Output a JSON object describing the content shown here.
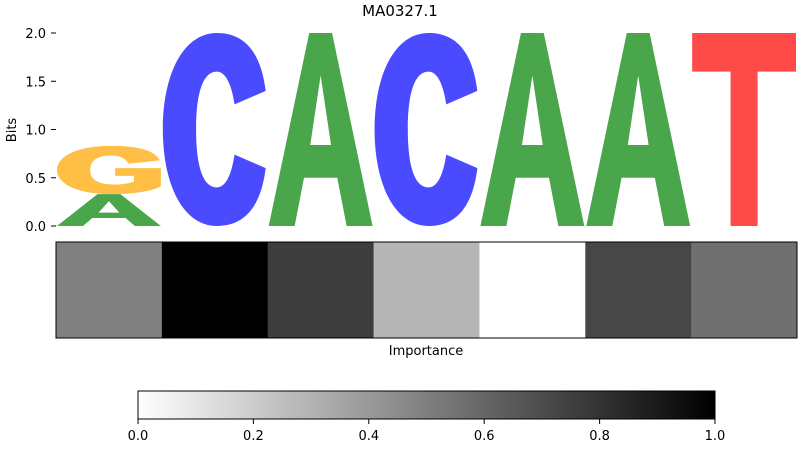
{
  "chart_data": [
    {
      "type": "sequence-logo",
      "title": "MA0327.1",
      "ylabel": "Bits",
      "ylim": [
        0,
        2.0
      ],
      "yticks": [
        "0.0",
        "0.5",
        "1.0",
        "1.5",
        "2.0"
      ],
      "positions": [
        {
          "letters": [
            {
              "base": "A",
              "bits": 0.33
            },
            {
              "base": "G",
              "bits": 0.5
            }
          ]
        },
        {
          "letters": [
            {
              "base": "C",
              "bits": 2.0
            }
          ]
        },
        {
          "letters": [
            {
              "base": "A",
              "bits": 2.0
            }
          ]
        },
        {
          "letters": [
            {
              "base": "C",
              "bits": 2.0
            }
          ]
        },
        {
          "letters": [
            {
              "base": "A",
              "bits": 2.0
            }
          ]
        },
        {
          "letters": [
            {
              "base": "A",
              "bits": 2.0
            }
          ]
        },
        {
          "letters": [
            {
              "base": "T",
              "bits": 2.0
            }
          ]
        }
      ],
      "base_colors": {
        "A": "#4aa64a",
        "C": "#4a4aff",
        "G": "#ffbf47",
        "T": "#ff4a4a"
      }
    },
    {
      "type": "heatmap",
      "xlabel": "Importance",
      "values": [
        0.5,
        1.0,
        0.76,
        0.29,
        0.0,
        0.72,
        0.56
      ],
      "colormap": "Greys"
    },
    {
      "type": "colorbar",
      "range": [
        0.0,
        1.0
      ],
      "ticks": [
        "0.0",
        "0.2",
        "0.4",
        "0.6",
        "0.8",
        "1.0"
      ]
    }
  ]
}
